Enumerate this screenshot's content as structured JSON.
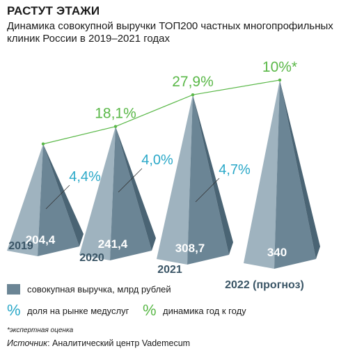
{
  "title": "РАСТУТ ЭТАЖИ",
  "subtitle": "Динамика совокупной выручки ТОП200 частных многопрофильных клиник России в 2019–2021 годах",
  "chart_data": {
    "type": "bar",
    "categories": [
      "2019",
      "2020",
      "2021",
      "2022 (прогноз)"
    ],
    "series": [
      {
        "name": "совокупная выручка, млрд рублей",
        "values": [
          204.4,
          241.4,
          308.7,
          340
        ],
        "labels": [
          "204,4",
          "241,4",
          "308,7",
          "340"
        ]
      },
      {
        "name": "доля на рынке медуслуг",
        "values": [
          4.4,
          4.0,
          4.7,
          null
        ],
        "labels": [
          "4,4%",
          "4,0%",
          "4,7%",
          ""
        ]
      },
      {
        "name": "динамика год к году",
        "values": [
          null,
          18.1,
          27.9,
          10
        ],
        "labels": [
          "",
          "18,1%",
          "27,9%",
          "10%*"
        ]
      }
    ]
  },
  "colors": {
    "bar": "#6b8595",
    "bar_dark": "#4a6474",
    "bar_light": "#9fb3bf",
    "share": "#2aa8c8",
    "growth": "#5ab848"
  },
  "legend": {
    "revenue": "совокупная выручка, млрд рублей",
    "share_symbol": "%",
    "share": "доля на рынке медуслуг",
    "growth_symbol": "%",
    "growth": "динамика год к году"
  },
  "footnote": "*экспертная оценка",
  "source": {
    "label": "Источник",
    "text": ": Аналитический центр Vademecum"
  }
}
